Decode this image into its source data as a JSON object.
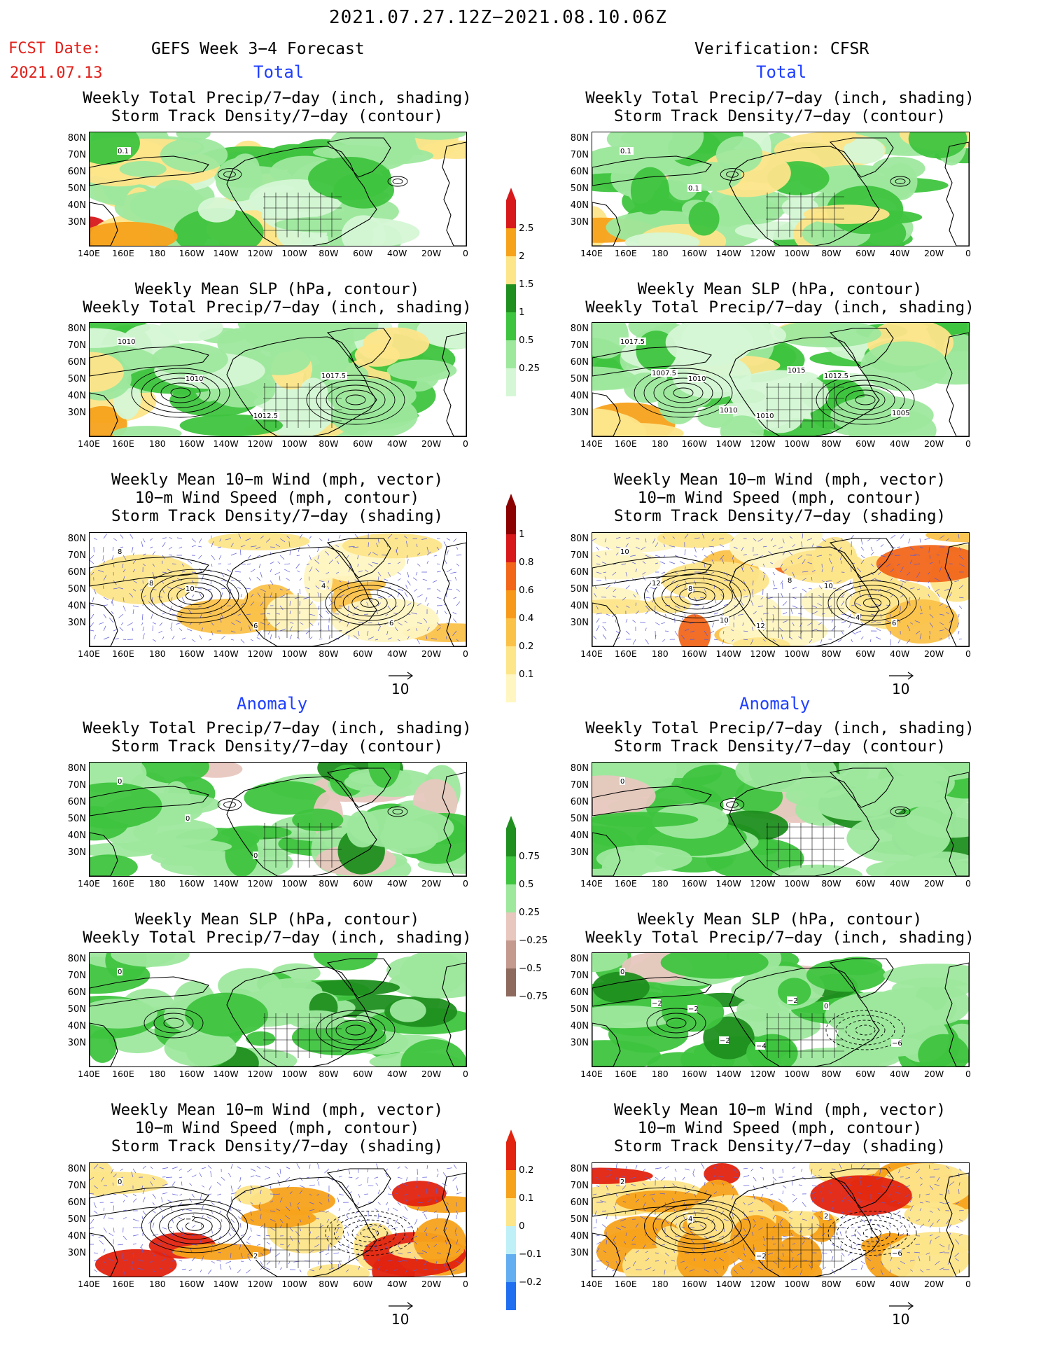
{
  "header": {
    "period": "2021.07.27.12Z−2021.08.10.06Z",
    "fcst_label": "FCST Date:",
    "fcst_date": "2021.07.13",
    "left_title": "GEFS Week 3−4 Forecast",
    "right_title": "Verification: CFSR",
    "total": "Total",
    "anomaly": "Anomaly"
  },
  "titles": {
    "precip_storm": [
      "Weekly Total Precip/7−day (inch, shading)",
      "Storm Track Density/7−day (contour)"
    ],
    "slp_precip": [
      "Weekly Mean SLP (hPa, contour)",
      "Weekly Total Precip/7−day (inch, shading)"
    ],
    "wind": [
      "Weekly Mean 10−m Wind (mph, vector)",
      "10−m Wind Speed (mph, contour)",
      "Storm Track Density/7−day (shading)"
    ]
  },
  "axes": {
    "lat_labels": [
      "80N",
      "70N",
      "60N",
      "50N",
      "40N",
      "30N"
    ],
    "lon_labels": [
      "140E",
      "160E",
      "180",
      "160W",
      "140W",
      "120W",
      "100W",
      "80W",
      "60W",
      "40W",
      "20W",
      "0"
    ]
  },
  "colorbars": {
    "precip_total": {
      "labels": [
        "2.5",
        "2",
        "1.5",
        "1",
        "0.5",
        "0.25"
      ],
      "colors": [
        "#d7191c",
        "#f7a21b",
        "#fde58a",
        "#1f8f1f",
        "#3fc43f",
        "#9ee89e",
        "#d5f7d5"
      ]
    },
    "storm_total": {
      "labels": [
        "1",
        "0.8",
        "0.6",
        "0.4",
        "0.2",
        "0.1"
      ],
      "colors": [
        "#8b0000",
        "#d7191c",
        "#f2661a",
        "#f79a1b",
        "#fbc24a",
        "#fde58a",
        "#fff6c2"
      ]
    },
    "precip_anom": {
      "labels": [
        "0.75",
        "0.5",
        "0.25",
        "−0.25",
        "−0.5",
        "−0.75"
      ],
      "colors": [
        "#1f8f1f",
        "#3fc43f",
        "#9ee89e",
        "#e8c7bf",
        "#c49a8e",
        "#8e6a5e"
      ]
    },
    "storm_anom": {
      "labels": [
        "0.2",
        "0.1",
        "0",
        "−0.1",
        "−0.2"
      ],
      "colors": [
        "#e2230f",
        "#f7a21b",
        "#fde58a",
        "#bff0f7",
        "#62aef0",
        "#1f6ff0"
      ]
    }
  },
  "vector_ref": "10",
  "panel_labels": {
    "f_total_precip": [
      "0.1"
    ],
    "v_total_precip": [
      "0.1",
      "0.1"
    ],
    "f_total_slp": [
      "1010",
      "1010",
      "1012.5",
      "1017.5"
    ],
    "v_total_slp": [
      "1017.5",
      "1010",
      "1010",
      "1012.5",
      "1005",
      "1007.5",
      "1010",
      "1015"
    ],
    "f_total_wind": [
      "8",
      "10",
      "6",
      "4",
      "6",
      "8"
    ],
    "v_total_wind": [
      "10",
      "8",
      "12",
      "10",
      "6",
      "12",
      "10",
      "8",
      "4"
    ],
    "f_anom_precip": [
      "0",
      "0",
      "0"
    ],
    "v_anom_precip": [
      "0"
    ],
    "f_anom_slp": [
      "0"
    ],
    "v_anom_slp": [
      "0",
      "−2",
      "−4",
      "0",
      "−6",
      "−2",
      "−2",
      "−2"
    ],
    "f_anom_wind": [
      "0",
      "−2",
      "2"
    ],
    "v_anom_wind": [
      "2",
      "4",
      "−2",
      "2",
      "−6"
    ]
  }
}
